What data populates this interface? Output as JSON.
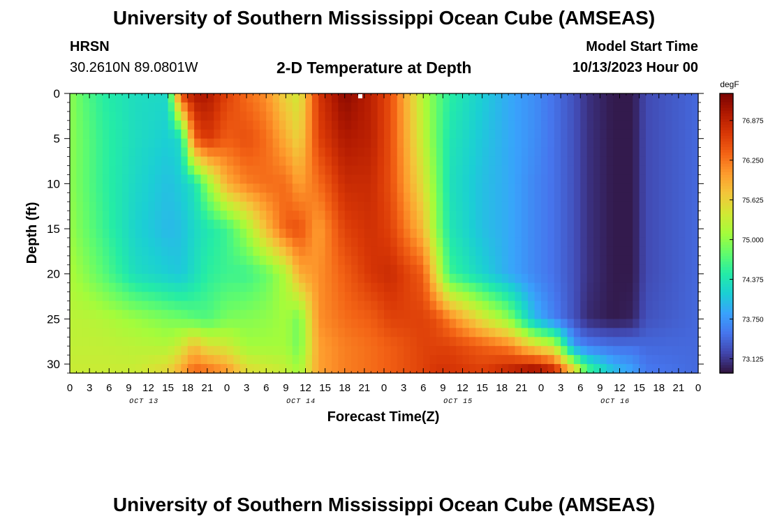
{
  "header": {
    "title": "University of Southern Mississippi Ocean Cube (AMSEAS)",
    "station": "HRSN",
    "location": "30.2610N  89.0801W",
    "subtitle": "2-D Temperature at Depth",
    "model_start_label": "Model Start Time",
    "model_start_value": "10/13/2023 Hour 00"
  },
  "footer": {
    "title": "University of Southern Mississippi Ocean Cube (AMSEAS)"
  },
  "chart_data": {
    "type": "heatmap",
    "title": "2-D Temperature at Depth",
    "xlabel": "Forecast Time(Z)",
    "ylabel": "Depth (ft)",
    "x_range": [
      0,
      96
    ],
    "x_unit": "hours from model start",
    "x_tick_hours": [
      0,
      3,
      6,
      9,
      12,
      15,
      18,
      21,
      24,
      27,
      30,
      33,
      36,
      39,
      42,
      45,
      48,
      51,
      54,
      57,
      60,
      63,
      66,
      69,
      72,
      75,
      78,
      81,
      84,
      87,
      90,
      93,
      96
    ],
    "x_tick_labels": [
      "0",
      "3",
      "6",
      "9",
      "12",
      "15",
      "18",
      "21",
      "0",
      "3",
      "6",
      "9",
      "12",
      "15",
      "18",
      "21",
      "0",
      "3",
      "6",
      "9",
      "12",
      "15",
      "18",
      "21",
      "0",
      "3",
      "6",
      "9",
      "12",
      "15",
      "18",
      "21",
      "0"
    ],
    "day_labels": [
      {
        "label": "OCT 13",
        "hour": 11
      },
      {
        "label": "OCT 14",
        "hour": 35
      },
      {
        "label": "OCT 15",
        "hour": 59
      },
      {
        "label": "OCT 16",
        "hour": 83
      }
    ],
    "ylim": [
      0,
      31
    ],
    "y_ticks": [
      0,
      5,
      10,
      15,
      20,
      25,
      30
    ],
    "y_tick_labels": [
      "0",
      "5",
      "10",
      "15",
      "20",
      "25",
      "30"
    ],
    "colorbar": {
      "unit": "degF",
      "range": [
        72.9,
        77.3
      ],
      "ticks": [
        76.875,
        76.25,
        75.625,
        75.0,
        74.375,
        73.75,
        73.125
      ],
      "tick_labels": [
        "76.875",
        "76.250",
        "75.625",
        "75.000",
        "74.375",
        "73.750",
        "73.125"
      ],
      "colormap": [
        "#30123b",
        "#4145ab",
        "#4675ed",
        "#39a2fc",
        "#1bcfd4",
        "#24eca6",
        "#61fc6c",
        "#a4fc3b",
        "#d1e834",
        "#f3c63a",
        "#fe9b2d",
        "#f36315",
        "#d93806",
        "#b11901",
        "#7a0402"
      ]
    },
    "temperature_profiles": {
      "description": "Temperature (degF) per hour column, sampled at depths 0, 5, 10, 15, 20, 25, 28, 30.5 ft",
      "depths": [
        0,
        5,
        10,
        15,
        20,
        25,
        28,
        30.5
      ],
      "keyframes": [
        {
          "hour": 0,
          "temps": [
            75.0,
            75.0,
            75.0,
            75.05,
            75.15,
            75.25,
            75.3,
            75.35
          ]
        },
        {
          "hour": 2,
          "temps": [
            74.75,
            74.8,
            74.8,
            74.85,
            75.0,
            75.25,
            75.3,
            75.35
          ]
        },
        {
          "hour": 5,
          "temps": [
            74.5,
            74.55,
            74.55,
            74.6,
            74.75,
            75.2,
            75.3,
            75.35
          ]
        },
        {
          "hour": 10,
          "temps": [
            74.3,
            74.3,
            74.25,
            74.2,
            74.3,
            75.05,
            75.25,
            75.35
          ]
        },
        {
          "hour": 15,
          "temps": [
            74.25,
            74.15,
            74.05,
            74.0,
            74.15,
            74.9,
            75.2,
            75.55
          ]
        },
        {
          "hour": 17,
          "temps": [
            76.6,
            74.3,
            74.15,
            74.05,
            74.1,
            74.85,
            75.4,
            75.9
          ]
        },
        {
          "hour": 19,
          "temps": [
            77.0,
            76.4,
            74.35,
            74.25,
            74.3,
            74.75,
            75.8,
            76.3
          ]
        },
        {
          "hour": 21,
          "temps": [
            77.0,
            76.7,
            75.0,
            74.4,
            74.5,
            74.7,
            75.5,
            76.2
          ]
        },
        {
          "hour": 24,
          "temps": [
            76.6,
            76.4,
            75.9,
            74.6,
            74.6,
            74.9,
            75.4,
            76.0
          ]
        },
        {
          "hour": 27,
          "temps": [
            76.3,
            76.5,
            76.2,
            75.1,
            74.6,
            74.95,
            75.1,
            75.5
          ]
        },
        {
          "hour": 30,
          "temps": [
            76.1,
            76.3,
            76.3,
            75.8,
            74.8,
            75.0,
            75.1,
            75.4
          ]
        },
        {
          "hour": 33,
          "temps": [
            75.6,
            75.9,
            76.3,
            76.4,
            75.2,
            75.1,
            75.1,
            75.3
          ]
        },
        {
          "hour": 35,
          "temps": [
            75.4,
            75.6,
            76.0,
            76.5,
            75.9,
            74.85,
            74.85,
            75.05
          ]
        },
        {
          "hour": 38,
          "temps": [
            76.7,
            76.6,
            76.3,
            76.0,
            76.1,
            76.1,
            76.0,
            76.0
          ]
        },
        {
          "hour": 42,
          "temps": [
            77.2,
            77.0,
            76.8,
            76.6,
            76.4,
            76.3,
            76.2,
            76.2
          ]
        },
        {
          "hour": 46,
          "temps": [
            76.9,
            76.9,
            76.8,
            76.75,
            76.7,
            76.4,
            76.3,
            76.3
          ]
        },
        {
          "hour": 49,
          "temps": [
            76.5,
            76.5,
            76.5,
            76.6,
            76.8,
            76.6,
            76.4,
            76.4
          ]
        },
        {
          "hour": 54,
          "temps": [
            75.2,
            75.3,
            75.5,
            75.8,
            76.4,
            76.6,
            76.6,
            76.6
          ]
        },
        {
          "hour": 56,
          "temps": [
            74.8,
            74.8,
            74.9,
            75.0,
            75.5,
            76.5,
            76.6,
            76.7
          ]
        },
        {
          "hour": 58,
          "temps": [
            74.5,
            74.4,
            74.35,
            74.4,
            74.6,
            76.2,
            76.6,
            76.7
          ]
        },
        {
          "hour": 63,
          "temps": [
            74.15,
            74.1,
            74.05,
            74.05,
            74.2,
            75.5,
            76.4,
            76.6
          ]
        },
        {
          "hour": 67,
          "temps": [
            73.9,
            73.9,
            73.9,
            73.9,
            73.9,
            75.0,
            76.2,
            76.8
          ]
        },
        {
          "hour": 71,
          "temps": [
            73.7,
            73.7,
            73.65,
            73.65,
            73.65,
            74.0,
            75.6,
            77.0
          ]
        },
        {
          "hour": 74,
          "temps": [
            73.5,
            73.5,
            73.5,
            73.5,
            73.5,
            73.6,
            75.3,
            76.7
          ]
        },
        {
          "hour": 77,
          "temps": [
            73.3,
            73.3,
            73.3,
            73.3,
            73.3,
            73.3,
            73.8,
            75.5
          ]
        },
        {
          "hour": 79,
          "temps": [
            73.1,
            73.1,
            73.1,
            73.1,
            73.1,
            73.05,
            73.6,
            74.6
          ]
        },
        {
          "hour": 83,
          "temps": [
            72.95,
            72.95,
            72.95,
            72.95,
            72.95,
            72.95,
            73.5,
            74.0
          ]
        },
        {
          "hour": 86,
          "temps": [
            72.95,
            72.95,
            72.95,
            72.95,
            72.95,
            73.0,
            73.5,
            73.8
          ]
        },
        {
          "hour": 88,
          "temps": [
            73.25,
            73.25,
            73.25,
            73.25,
            73.25,
            73.3,
            73.45,
            73.55
          ]
        },
        {
          "hour": 96,
          "temps": [
            73.45,
            73.45,
            73.45,
            73.45,
            73.45,
            73.45,
            73.45,
            73.45
          ]
        }
      ]
    }
  }
}
